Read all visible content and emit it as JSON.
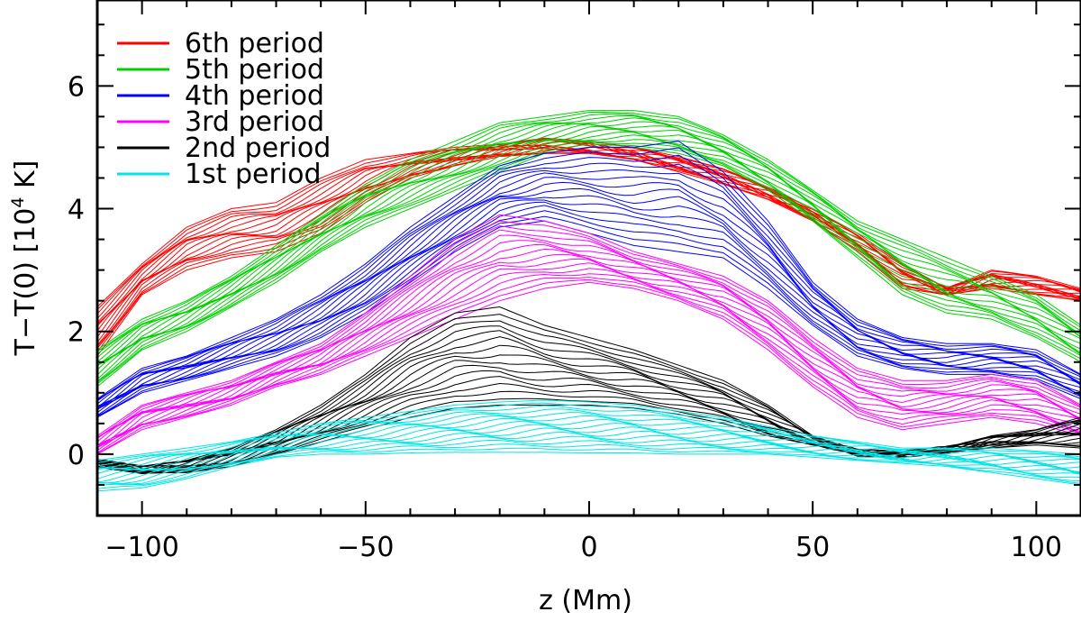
{
  "chart_data": {
    "type": "line",
    "title": "",
    "xlabel": "z (Mm)",
    "ylabel_main": "T−T(0) [10",
    "ylabel_exp": "4",
    "ylabel_tail": " K]",
    "xlim": [
      -110,
      110
    ],
    "ylim": [
      -1,
      7.4
    ],
    "xticks": [
      -100,
      -50,
      0,
      50,
      100
    ],
    "xtick_labels": [
      "−100",
      "−50",
      "0",
      "50",
      "100"
    ],
    "yticks": [
      0,
      2,
      4,
      6
    ],
    "ytick_labels": [
      "0",
      "2",
      "4",
      "6"
    ],
    "grid": false,
    "legend_position": "top-left",
    "series": [
      {
        "name": "6th period",
        "color": "#ff0000",
        "lower": [
          [
            -110,
            1.6
          ],
          [
            -100,
            2.6
          ],
          [
            -90,
            3.0
          ],
          [
            -80,
            3.2
          ],
          [
            -70,
            3.3
          ],
          [
            -60,
            3.6
          ],
          [
            -50,
            4.1
          ],
          [
            -40,
            4.5
          ],
          [
            -30,
            4.7
          ],
          [
            -20,
            4.85
          ],
          [
            -10,
            4.9
          ],
          [
            0,
            4.9
          ],
          [
            10,
            4.8
          ],
          [
            20,
            4.6
          ],
          [
            30,
            4.4
          ],
          [
            40,
            4.15
          ],
          [
            50,
            3.8
          ],
          [
            60,
            3.3
          ],
          [
            70,
            2.7
          ],
          [
            80,
            2.6
          ],
          [
            90,
            2.7
          ],
          [
            100,
            2.6
          ],
          [
            110,
            2.5
          ]
        ],
        "upper": [
          [
            -110,
            2.4
          ],
          [
            -100,
            3.1
          ],
          [
            -90,
            3.7
          ],
          [
            -80,
            4.0
          ],
          [
            -70,
            4.1
          ],
          [
            -60,
            4.5
          ],
          [
            -50,
            4.8
          ],
          [
            -40,
            4.9
          ],
          [
            -30,
            5.0
          ],
          [
            -20,
            5.05
          ],
          [
            -10,
            5.15
          ],
          [
            0,
            5.1
          ],
          [
            10,
            5.0
          ],
          [
            20,
            4.85
          ],
          [
            30,
            4.65
          ],
          [
            40,
            4.35
          ],
          [
            50,
            4.0
          ],
          [
            60,
            3.6
          ],
          [
            70,
            3.1
          ],
          [
            80,
            2.7
          ],
          [
            90,
            3.0
          ],
          [
            100,
            2.9
          ],
          [
            110,
            2.7
          ]
        ]
      },
      {
        "name": "5th period",
        "color": "#00d000",
        "lower": [
          [
            -110,
            1.1
          ],
          [
            -100,
            1.7
          ],
          [
            -90,
            2.0
          ],
          [
            -80,
            2.4
          ],
          [
            -70,
            2.8
          ],
          [
            -60,
            3.3
          ],
          [
            -50,
            3.7
          ],
          [
            -40,
            4.0
          ],
          [
            -30,
            4.3
          ],
          [
            -20,
            4.6
          ],
          [
            -10,
            4.9
          ],
          [
            0,
            5.0
          ],
          [
            10,
            5.0
          ],
          [
            20,
            4.9
          ],
          [
            30,
            4.7
          ],
          [
            40,
            4.3
          ],
          [
            50,
            3.8
          ],
          [
            60,
            3.2
          ],
          [
            70,
            2.6
          ],
          [
            80,
            2.3
          ],
          [
            90,
            2.2
          ],
          [
            100,
            1.9
          ],
          [
            110,
            1.5
          ]
        ],
        "upper": [
          [
            -110,
            1.7
          ],
          [
            -100,
            2.2
          ],
          [
            -90,
            2.5
          ],
          [
            -80,
            2.9
          ],
          [
            -70,
            3.4
          ],
          [
            -60,
            3.9
          ],
          [
            -50,
            4.4
          ],
          [
            -40,
            4.8
          ],
          [
            -30,
            5.1
          ],
          [
            -20,
            5.4
          ],
          [
            -10,
            5.5
          ],
          [
            0,
            5.6
          ],
          [
            10,
            5.6
          ],
          [
            20,
            5.5
          ],
          [
            30,
            5.2
          ],
          [
            40,
            4.8
          ],
          [
            50,
            4.3
          ],
          [
            60,
            3.8
          ],
          [
            70,
            3.5
          ],
          [
            80,
            3.2
          ],
          [
            90,
            2.9
          ],
          [
            100,
            2.6
          ],
          [
            110,
            2.1
          ]
        ]
      },
      {
        "name": "4th period",
        "color": "#0000ff",
        "lower": [
          [
            -110,
            0.6
          ],
          [
            -100,
            1.0
          ],
          [
            -90,
            1.2
          ],
          [
            -80,
            1.4
          ],
          [
            -70,
            1.6
          ],
          [
            -60,
            1.9
          ],
          [
            -50,
            2.3
          ],
          [
            -40,
            2.8
          ],
          [
            -30,
            3.3
          ],
          [
            -20,
            3.7
          ],
          [
            -10,
            3.8
          ],
          [
            0,
            3.6
          ],
          [
            10,
            3.4
          ],
          [
            20,
            3.3
          ],
          [
            30,
            3.2
          ],
          [
            40,
            2.7
          ],
          [
            50,
            2.1
          ],
          [
            60,
            1.6
          ],
          [
            70,
            1.4
          ],
          [
            80,
            1.3
          ],
          [
            90,
            1.3
          ],
          [
            100,
            1.2
          ],
          [
            110,
            0.9
          ]
        ],
        "upper": [
          [
            -110,
            0.9
          ],
          [
            -100,
            1.4
          ],
          [
            -90,
            1.6
          ],
          [
            -80,
            1.9
          ],
          [
            -70,
            2.2
          ],
          [
            -60,
            2.6
          ],
          [
            -50,
            3.1
          ],
          [
            -40,
            3.7
          ],
          [
            -30,
            4.2
          ],
          [
            -20,
            4.7
          ],
          [
            -10,
            4.9
          ],
          [
            0,
            5.0
          ],
          [
            10,
            5.0
          ],
          [
            20,
            5.1
          ],
          [
            30,
            4.6
          ],
          [
            40,
            3.8
          ],
          [
            50,
            2.8
          ],
          [
            60,
            2.2
          ],
          [
            70,
            1.9
          ],
          [
            80,
            1.8
          ],
          [
            90,
            1.8
          ],
          [
            100,
            1.7
          ],
          [
            110,
            1.3
          ]
        ]
      },
      {
        "name": "3rd period",
        "color": "#ff00ff",
        "lower": [
          [
            -110,
            0.0
          ],
          [
            -100,
            0.4
          ],
          [
            -90,
            0.6
          ],
          [
            -80,
            0.8
          ],
          [
            -70,
            1.1
          ],
          [
            -60,
            1.3
          ],
          [
            -50,
            1.6
          ],
          [
            -40,
            1.9
          ],
          [
            -30,
            2.2
          ],
          [
            -20,
            2.5
          ],
          [
            -10,
            2.7
          ],
          [
            0,
            2.8
          ],
          [
            10,
            2.7
          ],
          [
            20,
            2.5
          ],
          [
            30,
            2.2
          ],
          [
            40,
            1.7
          ],
          [
            50,
            1.1
          ],
          [
            60,
            0.6
          ],
          [
            70,
            0.4
          ],
          [
            80,
            0.5
          ],
          [
            90,
            0.6
          ],
          [
            100,
            0.5
          ],
          [
            110,
            0.3
          ]
        ],
        "upper": [
          [
            -110,
            0.3
          ],
          [
            -100,
            0.8
          ],
          [
            -90,
            1.0
          ],
          [
            -80,
            1.2
          ],
          [
            -70,
            1.5
          ],
          [
            -60,
            1.8
          ],
          [
            -50,
            2.3
          ],
          [
            -40,
            2.9
          ],
          [
            -30,
            3.5
          ],
          [
            -20,
            3.9
          ],
          [
            -10,
            3.8
          ],
          [
            0,
            3.6
          ],
          [
            10,
            3.3
          ],
          [
            20,
            3.1
          ],
          [
            30,
            2.9
          ],
          [
            40,
            2.5
          ],
          [
            50,
            1.9
          ],
          [
            60,
            1.4
          ],
          [
            70,
            1.2
          ],
          [
            80,
            1.2
          ],
          [
            90,
            1.3
          ],
          [
            100,
            1.2
          ],
          [
            110,
            0.8
          ]
        ]
      },
      {
        "name": "2nd period",
        "color": "#000000",
        "lower": [
          [
            -110,
            -0.2
          ],
          [
            -100,
            -0.3
          ],
          [
            -90,
            -0.3
          ],
          [
            -80,
            -0.2
          ],
          [
            -70,
            0.0
          ],
          [
            -60,
            0.2
          ],
          [
            -50,
            0.4
          ],
          [
            -40,
            0.6
          ],
          [
            -30,
            0.75
          ],
          [
            -20,
            0.8
          ],
          [
            -10,
            0.8
          ],
          [
            0,
            0.8
          ],
          [
            10,
            0.75
          ],
          [
            20,
            0.65
          ],
          [
            30,
            0.5
          ],
          [
            40,
            0.3
          ],
          [
            50,
            0.15
          ],
          [
            60,
            0.05
          ],
          [
            70,
            0.0
          ],
          [
            80,
            0.05
          ],
          [
            90,
            0.1
          ],
          [
            100,
            0.15
          ],
          [
            110,
            0.1
          ]
        ],
        "upper": [
          [
            -110,
            -0.1
          ],
          [
            -100,
            -0.2
          ],
          [
            -90,
            -0.1
          ],
          [
            -80,
            0.1
          ],
          [
            -70,
            0.4
          ],
          [
            -60,
            0.8
          ],
          [
            -50,
            1.3
          ],
          [
            -40,
            1.9
          ],
          [
            -30,
            2.3
          ],
          [
            -20,
            2.4
          ],
          [
            -10,
            2.1
          ],
          [
            0,
            1.9
          ],
          [
            10,
            1.7
          ],
          [
            20,
            1.45
          ],
          [
            30,
            1.2
          ],
          [
            40,
            0.8
          ],
          [
            50,
            0.3
          ],
          [
            60,
            0.0
          ],
          [
            70,
            0.0
          ],
          [
            80,
            0.1
          ],
          [
            90,
            0.3
          ],
          [
            100,
            0.4
          ],
          [
            110,
            0.6
          ]
        ]
      },
      {
        "name": "1st period",
        "color": "#00e5e5",
        "lower": [
          [
            -110,
            -0.6
          ],
          [
            -100,
            -0.55
          ],
          [
            -90,
            -0.4
          ],
          [
            -80,
            -0.2
          ],
          [
            -70,
            -0.05
          ],
          [
            -60,
            0.0
          ],
          [
            -50,
            0.0
          ],
          [
            -40,
            0.02
          ],
          [
            -30,
            0.03
          ],
          [
            -20,
            0.03
          ],
          [
            -10,
            0.03
          ],
          [
            0,
            0.02
          ],
          [
            10,
            0.02
          ],
          [
            20,
            0.0
          ],
          [
            30,
            0.0
          ],
          [
            40,
            0.0
          ],
          [
            50,
            -0.05
          ],
          [
            60,
            -0.1
          ],
          [
            70,
            -0.15
          ],
          [
            80,
            -0.2
          ],
          [
            90,
            -0.3
          ],
          [
            100,
            -0.4
          ],
          [
            110,
            -0.5
          ]
        ],
        "upper": [
          [
            -110,
            -0.1
          ],
          [
            -100,
            0.0
          ],
          [
            -90,
            0.1
          ],
          [
            -80,
            0.2
          ],
          [
            -70,
            0.35
          ],
          [
            -60,
            0.5
          ],
          [
            -50,
            0.6
          ],
          [
            -40,
            0.7
          ],
          [
            -30,
            0.8
          ],
          [
            -20,
            0.85
          ],
          [
            -10,
            0.88
          ],
          [
            0,
            0.85
          ],
          [
            10,
            0.8
          ],
          [
            20,
            0.7
          ],
          [
            30,
            0.6
          ],
          [
            40,
            0.45
          ],
          [
            50,
            0.3
          ],
          [
            60,
            0.2
          ],
          [
            70,
            0.1
          ],
          [
            80,
            0.1
          ],
          [
            90,
            0.1
          ],
          [
            100,
            0.05
          ],
          [
            110,
            0.0
          ]
        ]
      }
    ]
  }
}
